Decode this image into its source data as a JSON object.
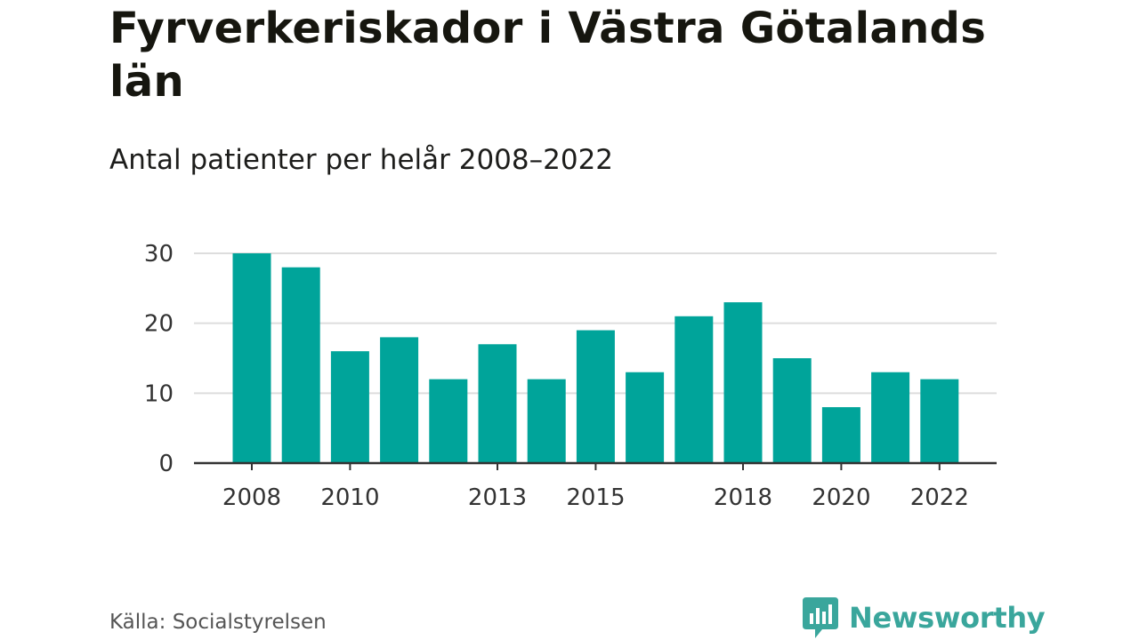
{
  "header": {
    "title": "Fyrverkeriskador i Västra Götalands län",
    "subtitle": "Antal patienter per helår 2008–2022"
  },
  "footer": {
    "source": "Källa: Socialstyrelsen",
    "brand": "Newsworthy"
  },
  "colors": {
    "bar": "#00a49a",
    "grid": "#dddddd",
    "axis": "#333333",
    "brand": "#3aa69c"
  },
  "chart_data": {
    "type": "bar",
    "categories": [
      "2008",
      "2009",
      "2010",
      "2011",
      "2012",
      "2013",
      "2014",
      "2015",
      "2016",
      "2017",
      "2018",
      "2019",
      "2020",
      "2021",
      "2022"
    ],
    "values": [
      30,
      28,
      16,
      18,
      12,
      17,
      12,
      19,
      13,
      21,
      23,
      15,
      8,
      13,
      12
    ],
    "x_tick_labels": [
      "2008",
      "2010",
      "2013",
      "2015",
      "2018",
      "2020",
      "2022"
    ],
    "y_ticks": [
      0,
      10,
      20,
      30
    ],
    "ylim": [
      0,
      30
    ],
    "grid": true,
    "legend": "none",
    "xlabel": "",
    "ylabel": ""
  }
}
